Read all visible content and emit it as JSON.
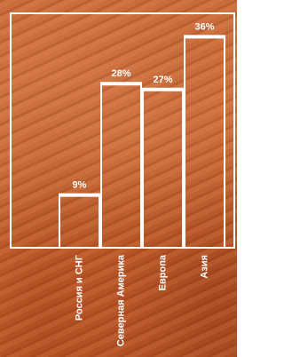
{
  "chart_data": {
    "type": "bar",
    "categories": [
      "Россия и СНГ",
      "Северная Америка",
      "Европа",
      "Азия"
    ],
    "values": [
      9,
      28,
      27,
      36
    ],
    "value_labels": [
      "9%",
      "28%",
      "27%",
      "36%"
    ],
    "color": "#ffffff",
    "ylim": [
      0,
      40
    ]
  }
}
